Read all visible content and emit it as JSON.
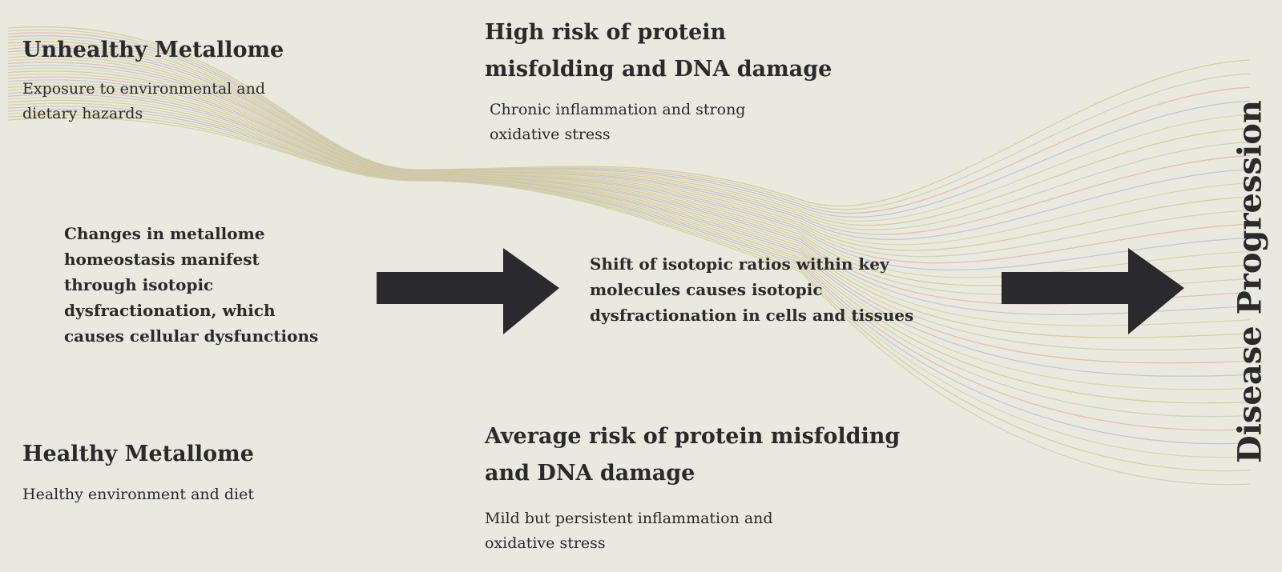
{
  "unhealthy": {
    "title": "Unhealthy Metallome",
    "text": "Exposure to environmental and dietary hazards"
  },
  "high_risk": {
    "title": "High risk of protein misfolding and DNA damage",
    "text": "Chronic inflammation and strong oxidative stress"
  },
  "changes": {
    "text": "Changes in metallome homeostasis manifest through isotopic dysfractionation, which causes cellular dysfunctions"
  },
  "shift": {
    "text": "Shift of isotopic ratios within key molecules causes isotopic dysfractionation in cells and tissues"
  },
  "healthy": {
    "title": "Healthy Metallome",
    "text": "Healthy environment and diet"
  },
  "average_risk": {
    "title": "Average risk of protein misfolding and DNA damage",
    "text": "Mild but persistent inflammation and oxidative stress"
  },
  "side_label": "Disease Progression"
}
